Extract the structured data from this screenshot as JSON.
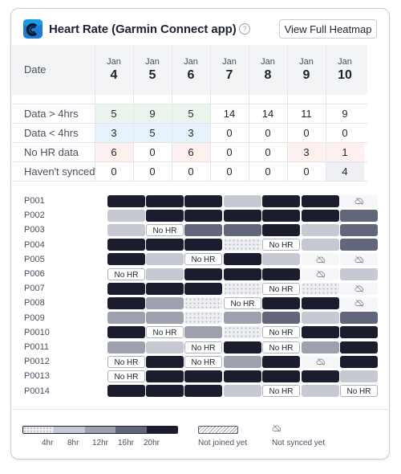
{
  "header": {
    "title": "Heart Rate (Garmin Connect app)",
    "help_icon": "question-circle-icon",
    "view_button": "View Full Heatmap"
  },
  "summary": {
    "date_label": "Date",
    "columns": [
      {
        "month": "Jan",
        "day": "4"
      },
      {
        "month": "Jan",
        "day": "5"
      },
      {
        "month": "Jan",
        "day": "6"
      },
      {
        "month": "Jan",
        "day": "7"
      },
      {
        "month": "Jan",
        "day": "8"
      },
      {
        "month": "Jan",
        "day": "9"
      },
      {
        "month": "Jan",
        "day": "10"
      }
    ],
    "rows": [
      {
        "label": "Data > 4hrs",
        "highlight": "#eaf5ee",
        "values": [
          "5",
          "9",
          "5",
          "14",
          "14",
          "11",
          "9"
        ],
        "highlighted": [
          true,
          true,
          true,
          false,
          false,
          false,
          false
        ]
      },
      {
        "label": "Data < 4hrs",
        "highlight": "#e8f2fd",
        "values": [
          "3",
          "5",
          "3",
          "0",
          "0",
          "0",
          "0"
        ],
        "highlighted": [
          true,
          true,
          true,
          false,
          false,
          false,
          false
        ]
      },
      {
        "label": "No HR data",
        "highlight": "#fdf0ee",
        "values": [
          "6",
          "0",
          "6",
          "0",
          "0",
          "3",
          "1"
        ],
        "highlighted": [
          true,
          false,
          true,
          false,
          false,
          true,
          true
        ]
      },
      {
        "label": "Haven't synced",
        "highlight": "#eef0f4",
        "values": [
          "0",
          "0",
          "0",
          "0",
          "0",
          "0",
          "4"
        ],
        "highlighted": [
          false,
          false,
          false,
          false,
          false,
          false,
          true
        ]
      }
    ]
  },
  "heatmap": {
    "no_hr_text": "No HR",
    "cloud_icon": "cloud-off-icon",
    "rows": [
      {
        "participant": "P001",
        "cells": [
          "5",
          "5",
          "5",
          "2",
          "5",
          "5",
          "ns"
        ]
      },
      {
        "participant": "P002",
        "cells": [
          "2",
          "5",
          "5",
          "5",
          "5",
          "5",
          "4"
        ]
      },
      {
        "participant": "P003",
        "cells": [
          "2",
          "nohr",
          "4",
          "4",
          "5",
          "2",
          "4"
        ]
      },
      {
        "participant": "P004",
        "cells": [
          "5",
          "5",
          "5",
          "1",
          "nohr",
          "2",
          "4"
        ]
      },
      {
        "participant": "P005",
        "cells": [
          "5",
          "2",
          "nohr",
          "5",
          "2",
          "ns",
          "ns"
        ]
      },
      {
        "participant": "P006",
        "cells": [
          "nohr",
          "2",
          "5",
          "5",
          "5",
          "ns",
          "2"
        ]
      },
      {
        "participant": "P007",
        "cells": [
          "5",
          "5",
          "5",
          "1",
          "nohr",
          "1",
          "ns"
        ]
      },
      {
        "participant": "P008",
        "cells": [
          "5",
          "3",
          "1",
          "nohr",
          "5",
          "5",
          "ns"
        ]
      },
      {
        "participant": "P009",
        "cells": [
          "3",
          "3",
          "1",
          "3",
          "4",
          "2",
          "4"
        ]
      },
      {
        "participant": "P0010",
        "cells": [
          "5",
          "nohr",
          "3",
          "1",
          "nohr",
          "5",
          "5"
        ]
      },
      {
        "participant": "P0011",
        "cells": [
          "3",
          "2",
          "nohr",
          "5",
          "nohr",
          "3",
          "5"
        ]
      },
      {
        "participant": "P0012",
        "cells": [
          "nohr",
          "5",
          "nohr",
          "3",
          "5",
          "ns",
          "5"
        ]
      },
      {
        "participant": "P0013",
        "cells": [
          "nohr",
          "5",
          "5",
          "5",
          "5",
          "5",
          "2"
        ]
      },
      {
        "participant": "P0014",
        "cells": [
          "5",
          "5",
          "5",
          "2",
          "nohr",
          "2",
          "nohr"
        ]
      }
    ]
  },
  "legend": {
    "scale_labels": [
      "4hr",
      "8hr",
      "12hr",
      "16hr",
      "20hr"
    ],
    "not_joined_label": "Not joined yet",
    "not_synced_label": "Not synced yet",
    "levels_colors": [
      "#eceef2",
      "#c6c9d1",
      "#9da1ae",
      "#62667a",
      "#1b1d2e"
    ]
  }
}
